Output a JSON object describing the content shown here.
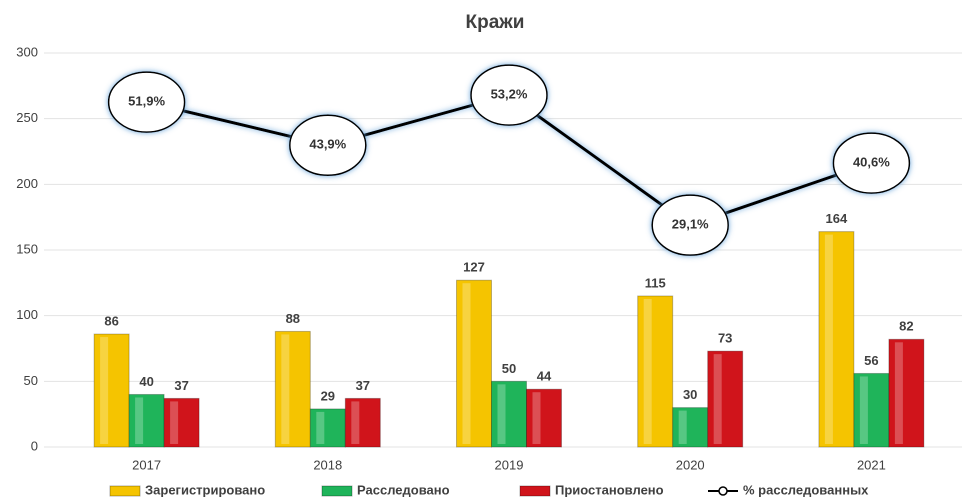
{
  "chart_data": {
    "type": "bar",
    "title": "Кражи",
    "categories": [
      "2017",
      "2018",
      "2019",
      "2020",
      "2021"
    ],
    "series": [
      {
        "name": "Зарегистрировано",
        "color": "#f5c400",
        "values": [
          86,
          88,
          127,
          115,
          164
        ]
      },
      {
        "name": "Расследовано",
        "color": "#1fb45a",
        "values": [
          40,
          29,
          50,
          30,
          56
        ]
      },
      {
        "name": "Приостановлено",
        "color": "#d0141b",
        "values": [
          37,
          37,
          44,
          73,
          82
        ]
      },
      {
        "name": "% расследованных",
        "type": "line",
        "axis": "y2",
        "color": "#000000",
        "values": [
          51.9,
          43.9,
          53.2,
          29.1,
          40.6
        ],
        "value_labels": [
          "51,9%",
          "43,9%",
          "53,2%",
          "29,1%",
          "40,6%"
        ]
      }
    ],
    "ylim": [
      0,
      300
    ],
    "yticks": [
      0,
      50,
      100,
      150,
      200,
      250,
      300
    ],
    "y2lim": [
      -12,
      61
    ],
    "grid": true,
    "legend": "bottom"
  }
}
